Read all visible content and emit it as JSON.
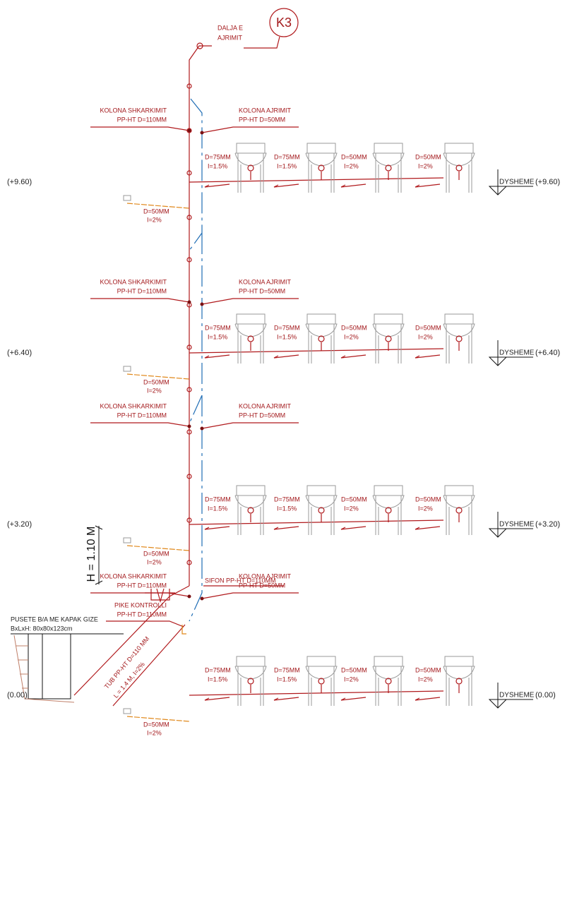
{
  "header": {
    "badge": "K3",
    "outlet": [
      "DALJA E",
      "AJRIMIT"
    ]
  },
  "floors": [
    {
      "level": "(+9.60)",
      "floor_label": "DYSHEME",
      "pipes": [
        {
          "d": "D=75MM",
          "slope": "I=1.5%"
        },
        {
          "d": "D=75MM",
          "slope": "I=1.5%"
        },
        {
          "d": "D=50MM",
          "slope": "I=2%"
        },
        {
          "d": "D=50MM",
          "slope": "I=2%"
        }
      ],
      "drain": {
        "d": "D=50MM",
        "slope": "I=2%"
      }
    },
    {
      "level": "(+6.40)",
      "floor_label": "DYSHEME",
      "pipes": [
        {
          "d": "D=75MM",
          "slope": "I=1.5%"
        },
        {
          "d": "D=75MM",
          "slope": "I=1.5%"
        },
        {
          "d": "D=50MM",
          "slope": "I=2%"
        },
        {
          "d": "D=50MM",
          "slope": "I=2%"
        }
      ],
      "drain": {
        "d": "D=50MM",
        "slope": "I=2%"
      }
    },
    {
      "level": "(+3.20)",
      "floor_label": "DYSHEME",
      "pipes": [
        {
          "d": "D=75MM",
          "slope": "I=1.5%"
        },
        {
          "d": "D=75MM",
          "slope": "I=1.5%"
        },
        {
          "d": "D=50MM",
          "slope": "I=2%"
        },
        {
          "d": "D=50MM",
          "slope": "I=2%"
        }
      ],
      "drain": {
        "d": "D=50MM",
        "slope": "I=2%"
      }
    },
    {
      "level": "(0.00)",
      "floor_label": "DYSHEME",
      "pipes": [
        {
          "d": "D=75MM",
          "slope": "I=1.5%"
        },
        {
          "d": "D=75MM",
          "slope": "I=1.5%"
        },
        {
          "d": "D=50MM",
          "slope": "I=2%"
        },
        {
          "d": "D=50MM",
          "slope": "I=2%"
        }
      ],
      "drain": {
        "d": "D=50MM",
        "slope": "I=2%"
      }
    }
  ],
  "columns": [
    {
      "drain": {
        "title": "KOLONA SHKARKIMIT",
        "spec": "PP-HT D=110MM"
      },
      "vent": {
        "title": "KOLONA AJRIMIT",
        "spec": "PP-HT D=50MM"
      }
    },
    {
      "drain": {
        "title": "KOLONA SHKARKIMIT",
        "spec": "PP-HT D=110MM"
      },
      "vent": {
        "title": "KOLONA AJRIMIT",
        "spec": "PP-HT D=50MM"
      }
    },
    {
      "drain": {
        "title": "KOLONA SHKARKIMIT",
        "spec": "PP-HT D=110MM"
      },
      "vent": {
        "title": "KOLONA AJRIMIT",
        "spec": "PP-HT D=50MM"
      }
    },
    {
      "drain": {
        "title": "KOLONA SHKARKIMIT",
        "spec": "PP-HT D=110MM"
      },
      "vent": {
        "title": "KOLONA AJRIMIT",
        "spec": "PP-HT D=50MM"
      }
    }
  ],
  "inspection": {
    "title": "PIKE KONTROLLI",
    "spec": "PP-HT D=110MM"
  },
  "siphon": "SIFON PP-HT D=110MM",
  "height": "H = 1.10 M",
  "manhole": [
    "PUSETE B/A ME KAPAK GIZE",
    "BxLxH: 80x80x123cm"
  ],
  "pipe": [
    "TUB PP-HT D=110 MM",
    "L = 1.4 M, I=2%"
  ]
}
